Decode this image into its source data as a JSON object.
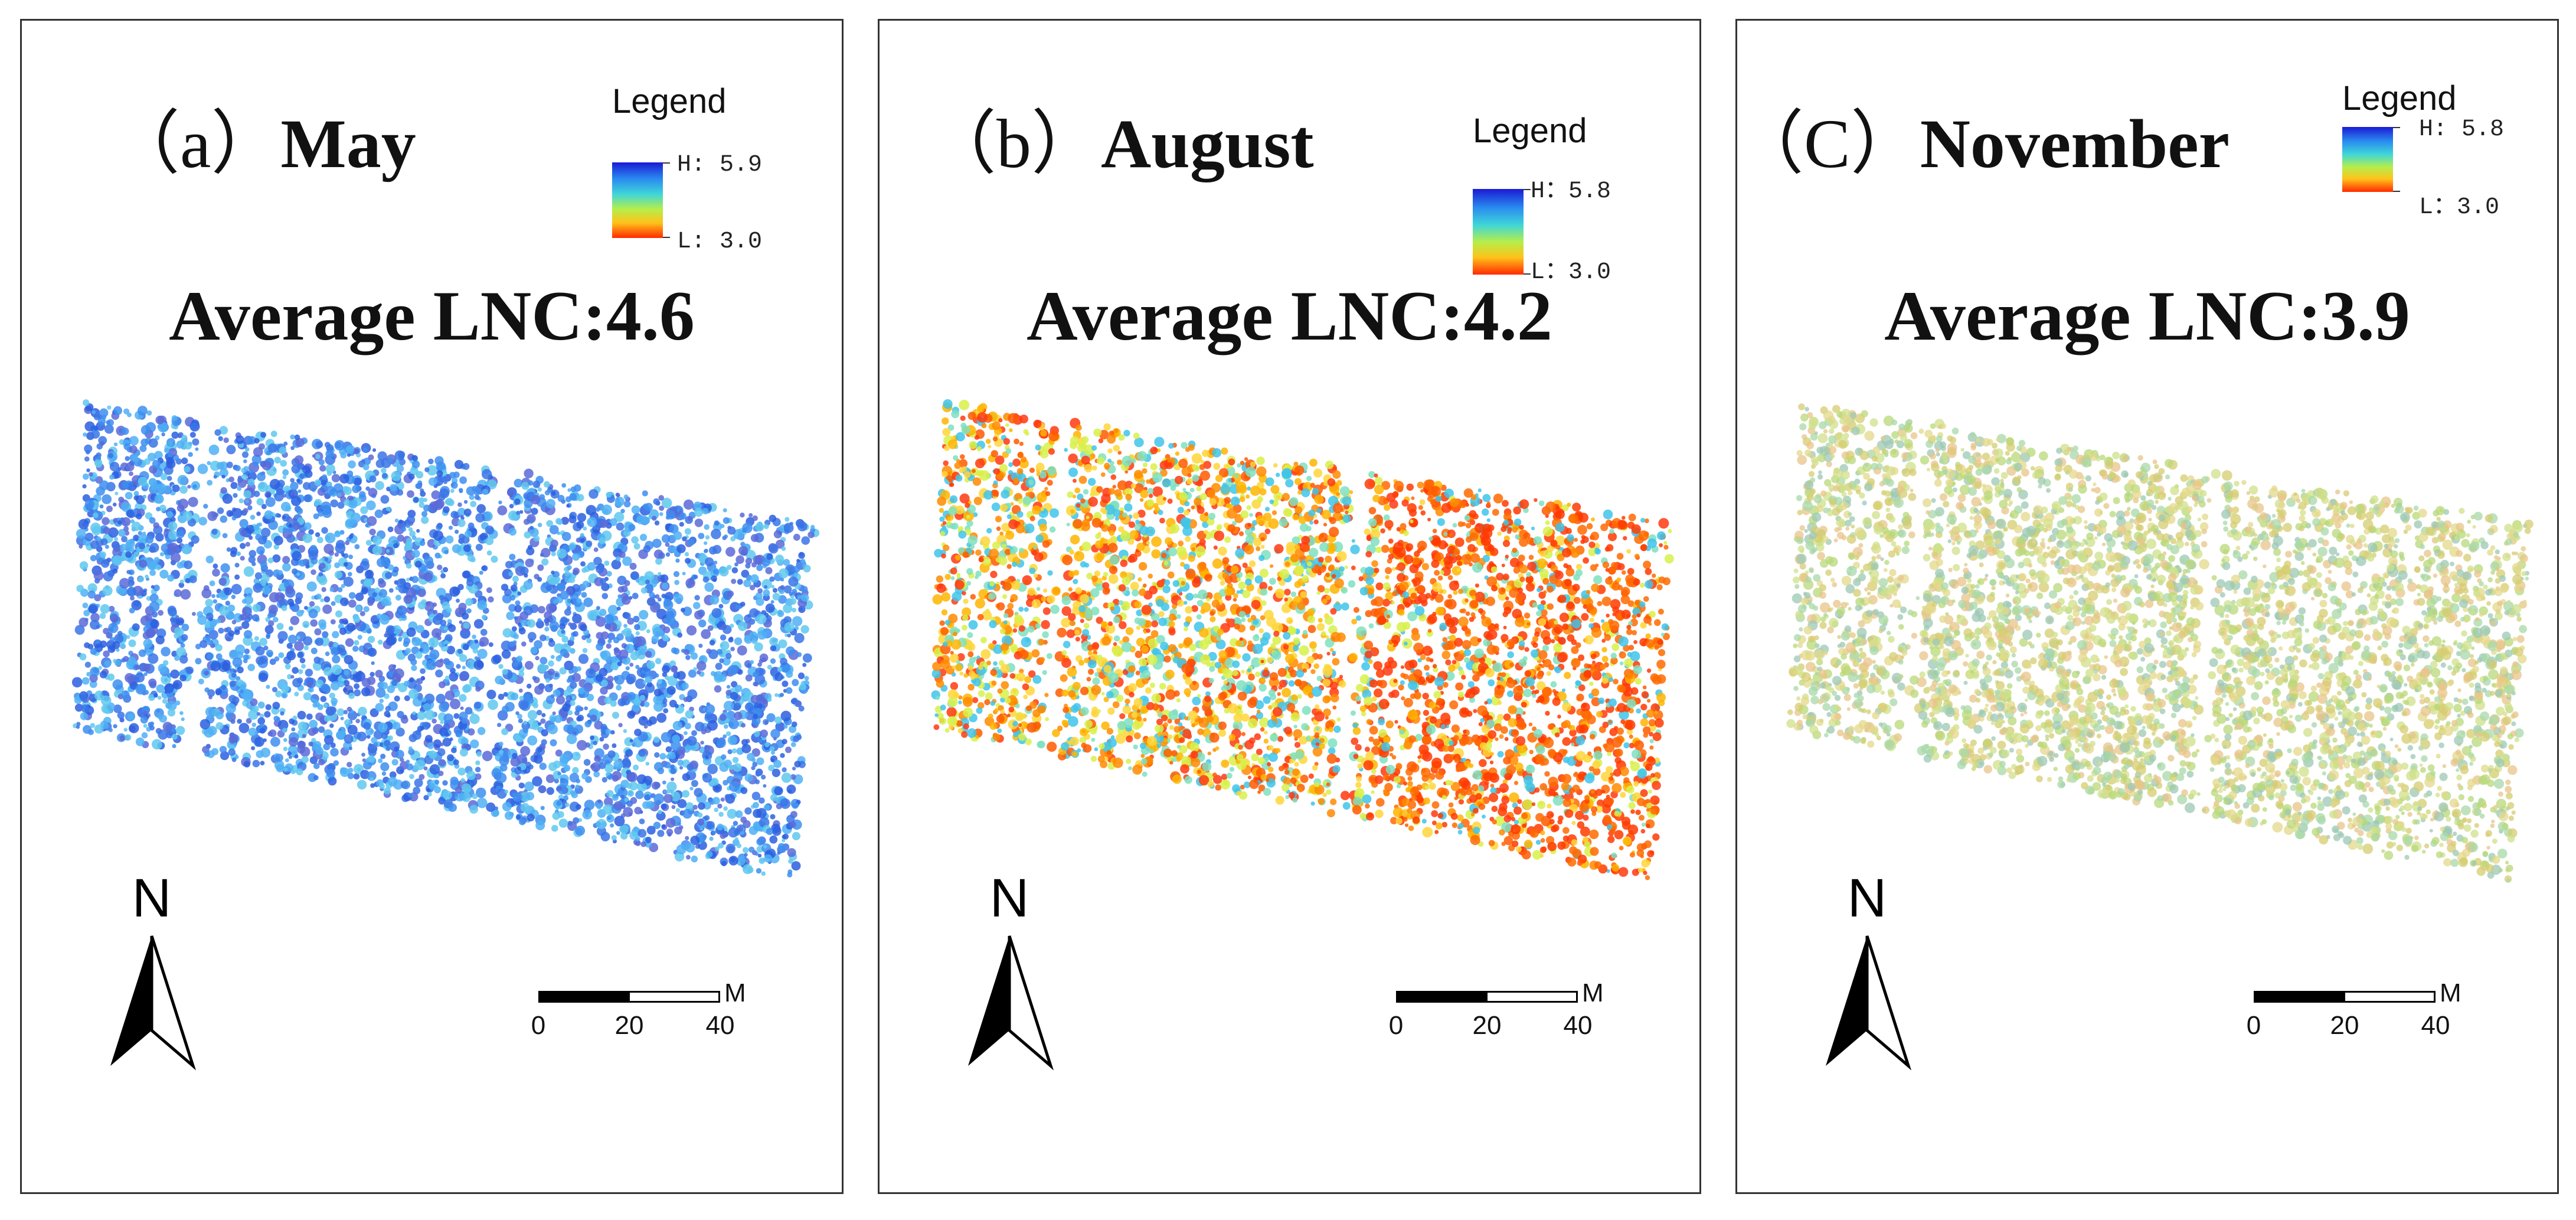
{
  "figure": {
    "panels": [
      {
        "id": "a",
        "title_prefix": "（a）",
        "title_name": "May",
        "legend": {
          "title": "Legend",
          "high": "H: 5.9",
          "low": "L: 3.0",
          "high_value": 5.9,
          "low_value": 3.0
        },
        "average": "Average LNC:4.6",
        "average_value": 4.6,
        "north": "N",
        "scale": {
          "labels": [
            "0",
            "20",
            "40"
          ],
          "unit": "M"
        },
        "palette_note": "mostly-blue",
        "colors": [
          "#2b5fe0",
          "#3d8ef0",
          "#4fb0f4",
          "#3a74e6",
          "#5a6ad8",
          "#60c8ee"
        ]
      },
      {
        "id": "b",
        "title_prefix": "（b）",
        "title_name": "August",
        "legend": {
          "title": "Legend",
          "high": "H：5.8",
          "low": "L：3.0",
          "high_value": 5.8,
          "low_value": 3.0
        },
        "average": "Average LNC:4.2",
        "average_value": 4.2,
        "north": "N",
        "scale": {
          "labels": [
            "0",
            "20",
            "40"
          ],
          "unit": "M"
        },
        "palette_note": "orange-red-with-cyan",
        "colors": [
          "#ff5a00",
          "#ff8a00",
          "#ffb400",
          "#ffd63a",
          "#d8f04a",
          "#7fe0c0",
          "#3fc4ea",
          "#ff3a10"
        ]
      },
      {
        "id": "c",
        "title_prefix": "（C）",
        "title_name": "November",
        "legend": {
          "title": "Legend",
          "high": "H: 5.8",
          "low": "L：3.0",
          "high_value": 5.8,
          "low_value": 3.0
        },
        "average": "Average LNC:3.9",
        "average_value": 3.9,
        "north": "N",
        "scale": {
          "labels": [
            "0",
            "20",
            "40"
          ],
          "unit": "M"
        },
        "palette_note": "pale-yellow-green",
        "colors": [
          "#cfe08a",
          "#e3d88a",
          "#b8d878",
          "#e8c48a",
          "#a8d8a8",
          "#d6cc70",
          "#9cc8b4"
        ]
      }
    ]
  }
}
